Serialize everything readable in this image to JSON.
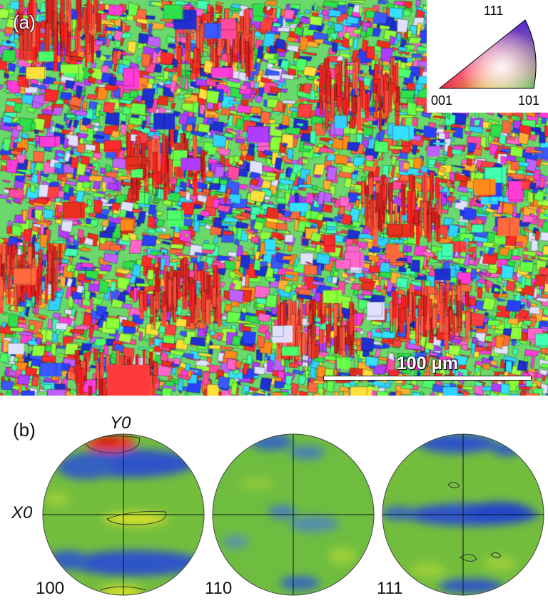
{
  "panels": {
    "a_label": "(a)",
    "b_label": "(b)"
  },
  "ipf_legend": {
    "corner_top": "111",
    "corner_left": "001",
    "corner_right": "101",
    "colors": {
      "001": "#ff0000",
      "101": "#00ff00",
      "111": "#0000ff"
    }
  },
  "scale_bar": {
    "label": "100 μm"
  },
  "pole_figures": {
    "axis_y": "Y0",
    "axis_x": "X0",
    "figures": [
      {
        "label": "100"
      },
      {
        "label": "110"
      },
      {
        "label": "111"
      }
    ],
    "colors": {
      "base": "#6fbf3c",
      "low": "#2a4fcf",
      "high": "#e31a1c",
      "mid": "#d7e02b"
    }
  }
}
